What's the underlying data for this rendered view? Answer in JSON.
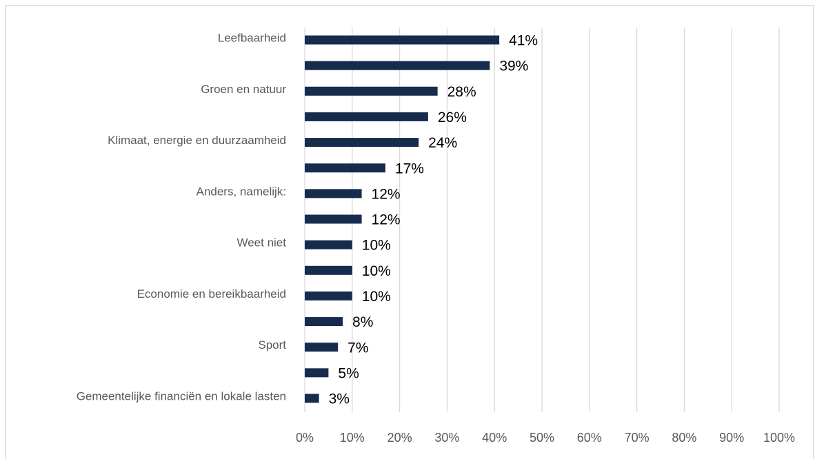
{
  "chart_data": {
    "type": "bar",
    "orientation": "horizontal",
    "categories": [
      "Leefbaarheid",
      null,
      "Groen en natuur",
      null,
      "Klimaat, energie en duurzaamheid",
      null,
      "Anders, namelijk:",
      null,
      "Weet niet",
      null,
      "Economie en bereikbaarheid",
      null,
      "Sport",
      null,
      "Gemeentelijke financiën en lokale lasten"
    ],
    "values": [
      41,
      39,
      28,
      26,
      24,
      17,
      12,
      12,
      10,
      10,
      10,
      8,
      7,
      5,
      3
    ],
    "value_labels": [
      "41%",
      "39%",
      "28%",
      "26%",
      "24%",
      "17%",
      "12%",
      "12%",
      "10%",
      "10%",
      "10%",
      "8%",
      "7%",
      "5%",
      "3%"
    ],
    "color": "#172b4d",
    "xlim": [
      0,
      100
    ],
    "xticks": [
      {
        "value": 0,
        "label": "0%"
      },
      {
        "value": 10,
        "label": "10%"
      },
      {
        "value": 20,
        "label": "20%"
      },
      {
        "value": 30,
        "label": "30%"
      },
      {
        "value": 40,
        "label": "40%"
      },
      {
        "value": 50,
        "label": "50%"
      },
      {
        "value": 60,
        "label": "60%"
      },
      {
        "value": 70,
        "label": "70%"
      },
      {
        "value": 80,
        "label": "80%"
      },
      {
        "value": 90,
        "label": "90%"
      },
      {
        "value": 100,
        "label": "100%"
      }
    ],
    "grid": true
  }
}
